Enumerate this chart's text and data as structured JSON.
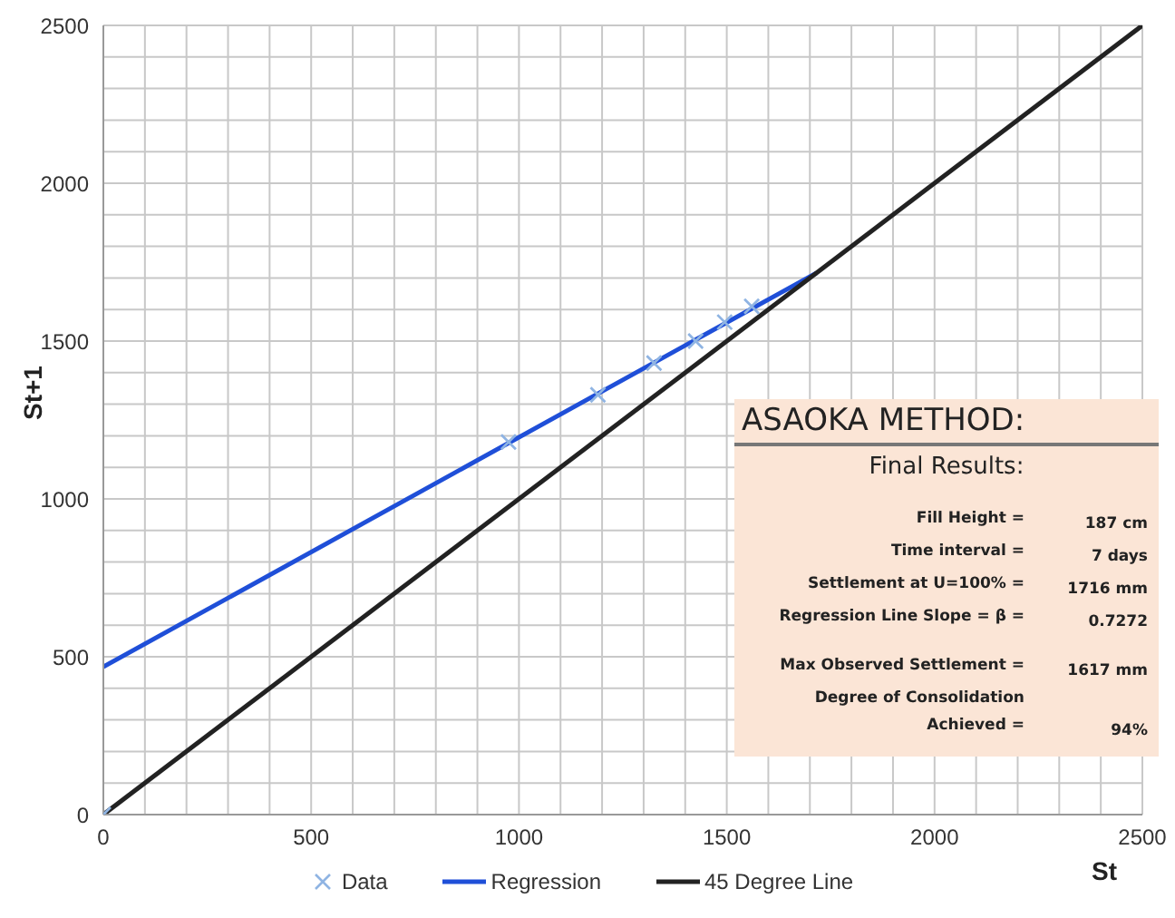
{
  "chart_data": {
    "type": "scatter",
    "xlabel": "St",
    "ylabel": "St+1",
    "xlim": [
      0,
      2500
    ],
    "ylim": [
      0,
      2500
    ],
    "xticks": [
      0,
      {
        "value": 100,
        "label": null
      },
      {
        "value": 200,
        "label": null
      },
      {
        "value": 300,
        "label": null
      },
      {
        "value": 400,
        "label": null
      },
      500,
      {
        "value": 600,
        "label": null
      },
      {
        "value": 700,
        "label": null
      },
      {
        "value": 800,
        "label": null
      },
      {
        "value": 900,
        "label": null
      },
      1000,
      {
        "value": 1100,
        "label": null
      },
      {
        "value": 1200,
        "label": null
      },
      {
        "value": 1300,
        "label": null
      },
      {
        "value": 1400,
        "label": null
      },
      1500,
      {
        "value": 1600,
        "label": null
      },
      {
        "value": 1700,
        "label": null
      },
      {
        "value": 1800,
        "label": null
      },
      {
        "value": 1900,
        "label": null
      },
      2000,
      {
        "value": 2100,
        "label": null
      },
      {
        "value": 2200,
        "label": null
      },
      {
        "value": 2300,
        "label": null
      },
      {
        "value": 2400,
        "label": null
      },
      2500
    ],
    "yticks": [
      0,
      {
        "value": 100,
        "label": null
      },
      {
        "value": 200,
        "label": null
      },
      {
        "value": 300,
        "label": null
      },
      {
        "value": 400,
        "label": null
      },
      500,
      {
        "value": 600,
        "label": null
      },
      {
        "value": 700,
        "label": null
      },
      {
        "value": 800,
        "label": null
      },
      {
        "value": 900,
        "label": null
      },
      1000,
      {
        "value": 1100,
        "label": null
      },
      {
        "value": 1200,
        "label": null
      },
      {
        "value": 1300,
        "label": null
      },
      {
        "value": 1400,
        "label": null
      },
      1500,
      {
        "value": 1600,
        "label": null
      },
      {
        "value": 1700,
        "label": null
      },
      {
        "value": 1800,
        "label": null
      },
      {
        "value": 1900,
        "label": null
      },
      2000,
      {
        "value": 2100,
        "label": null
      },
      {
        "value": 2200,
        "label": null
      },
      {
        "value": 2300,
        "label": null
      },
      {
        "value": 2400,
        "label": null
      },
      2500
    ],
    "grid": true,
    "legend": "bottom",
    "series": [
      {
        "name": "Data",
        "marker": "cross",
        "color": "#8fb4e3",
        "x": [
          0,
          975,
          1190,
          1325,
          1425,
          1495,
          1560
        ],
        "values": [
          0,
          1180,
          1330,
          1430,
          1500,
          1560,
          1610
        ]
      },
      {
        "name": "Regression",
        "type": "line",
        "marker": "none",
        "color": "#1f4fd8",
        "x": [
          0,
          1716
        ],
        "values": [
          468,
          1716
        ]
      },
      {
        "name": "45 Degree Line",
        "type": "line",
        "marker": "none",
        "color": "#222222",
        "x": [
          0,
          2500
        ],
        "values": [
          0,
          2500
        ]
      }
    ],
    "annotations": [
      "ASAOKA METHOD:",
      "Final Results:",
      "Fill Height =",
      "187 cm",
      "Time interval =",
      "7 days",
      "Settlement at U=100% =",
      "1716 mm",
      "Regression Line Slope = β =",
      "0.7272",
      "Max Observed Settlement =",
      "1617 mm",
      "Degree of Consolidation Achieved =",
      "94%"
    ]
  }
}
